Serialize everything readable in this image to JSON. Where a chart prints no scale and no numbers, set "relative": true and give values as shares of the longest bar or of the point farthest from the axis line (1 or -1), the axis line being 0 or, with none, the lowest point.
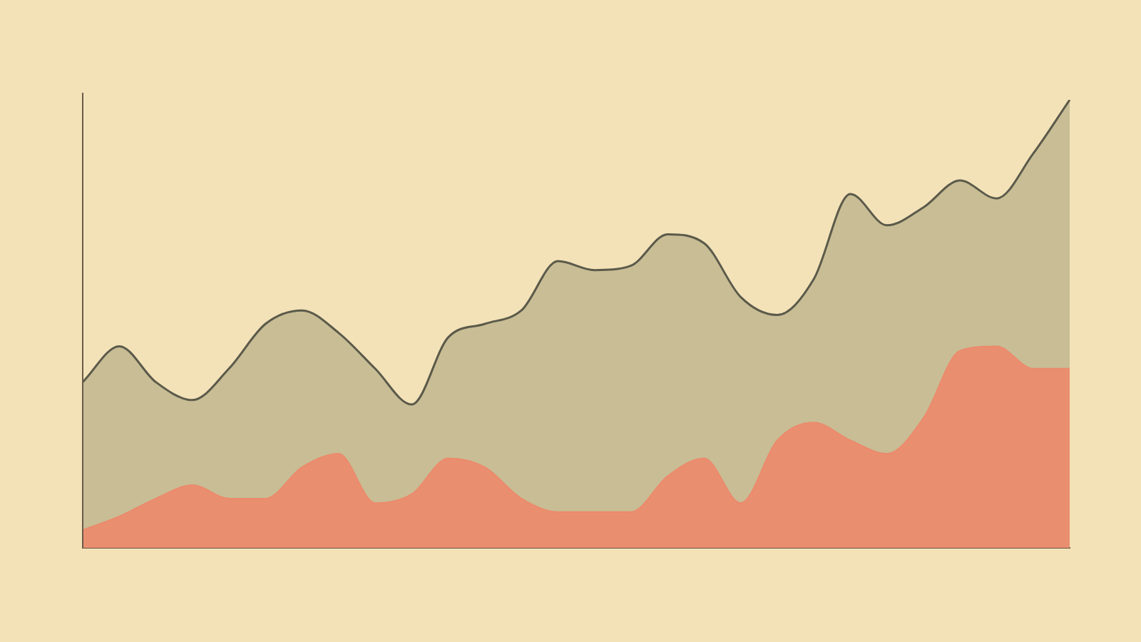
{
  "chart_data": {
    "type": "area",
    "relative": true,
    "categories": [
      null,
      null,
      null,
      null,
      null,
      null,
      null,
      null,
      null,
      null,
      null,
      null,
      null,
      null,
      null,
      null,
      null,
      null,
      null,
      null,
      null,
      null,
      null,
      null,
      null,
      null,
      null,
      null
    ],
    "series": [
      {
        "color": "#b9b08a",
        "values": [
          0.37,
          0.45,
          0.37,
          0.33,
          0.4,
          0.5,
          0.53,
          0.48,
          0.4,
          0.32,
          0.47,
          0.5,
          0.53,
          0.64,
          0.62,
          0.63,
          0.7,
          0.68,
          0.56,
          0.52,
          0.6,
          0.79,
          0.72,
          0.76,
          0.82,
          0.78,
          0.88,
          1.0
        ]
      },
      {
        "color": "#ec8a6c",
        "values": [
          0.04,
          0.07,
          0.11,
          0.14,
          0.11,
          0.11,
          0.18,
          0.21,
          0.1,
          0.12,
          0.2,
          0.18,
          0.11,
          0.08,
          0.08,
          0.08,
          0.16,
          0.2,
          0.1,
          0.24,
          0.28,
          0.24,
          0.21,
          0.29,
          0.44,
          0.45,
          0.4,
          0.4
        ]
      }
    ]
  }
}
